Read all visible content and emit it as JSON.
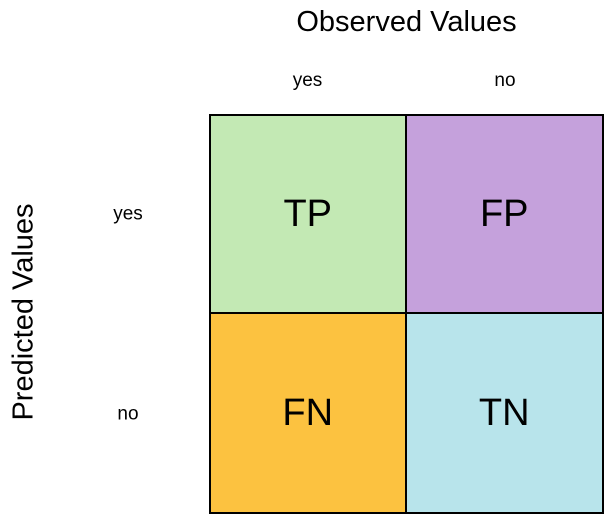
{
  "figure": {
    "x_axis_title": "Observed Values",
    "y_axis_title": "Predicted Values",
    "column_labels": [
      "yes",
      "no"
    ],
    "row_labels": [
      "yes",
      "no"
    ],
    "cells": [
      {
        "label": "TP",
        "row": "yes",
        "column": "yes",
        "color": "#C3E9B4"
      },
      {
        "label": "FP",
        "row": "yes",
        "column": "no",
        "color": "#C5A1DC"
      },
      {
        "label": "FN",
        "row": "no",
        "column": "yes",
        "color": "#FCC240"
      },
      {
        "label": "TN",
        "row": "no",
        "column": "no",
        "color": "#B8E4EB"
      }
    ],
    "colors": {
      "border": "#000000",
      "text": "#000000",
      "background": "#FFFFFF"
    }
  }
}
